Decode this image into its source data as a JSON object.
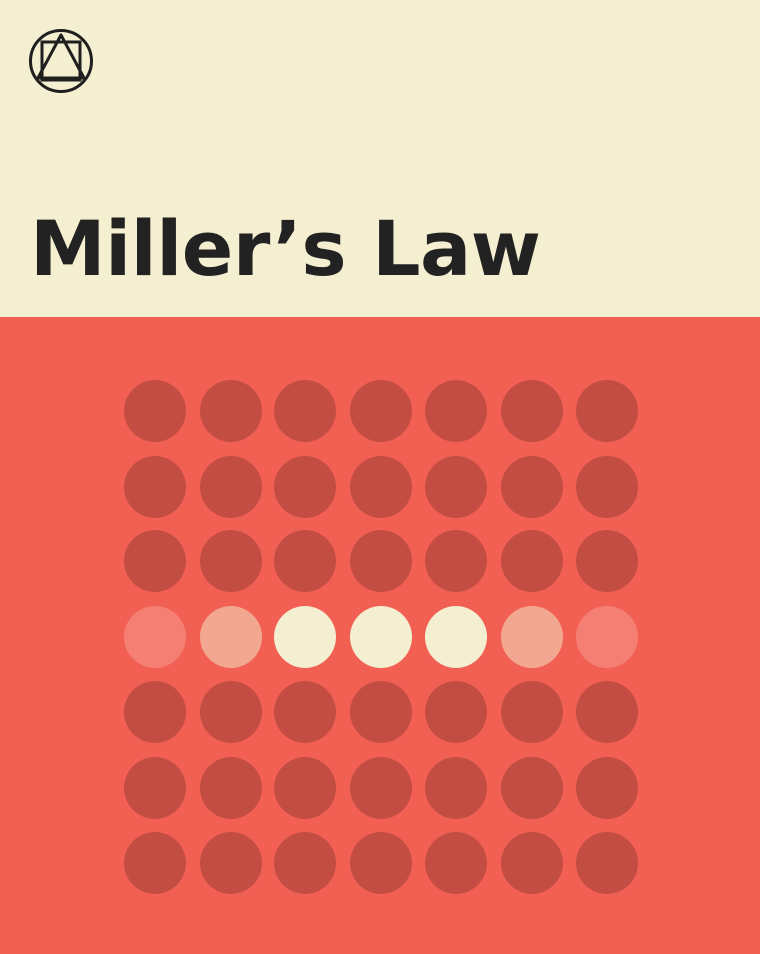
{
  "title": "Miller’s Law",
  "logo": {
    "icon": "circle-square-triangle-icon",
    "color": "#1f1f1f"
  },
  "colors": {
    "header_bg": "#f5efd1",
    "panel_bg": "#f26054",
    "dot_dark": "#c44d43",
    "dot_faint": "#f47f72",
    "dot_soft": "#f2a890",
    "dot_bright": "#f5efd1"
  },
  "dot_grid": {
    "rows": 7,
    "cols": 7,
    "highlight_row": 4,
    "highlight_row_shades": [
      "faint",
      "soft",
      "bright",
      "bright",
      "bright",
      "soft",
      "faint"
    ]
  }
}
